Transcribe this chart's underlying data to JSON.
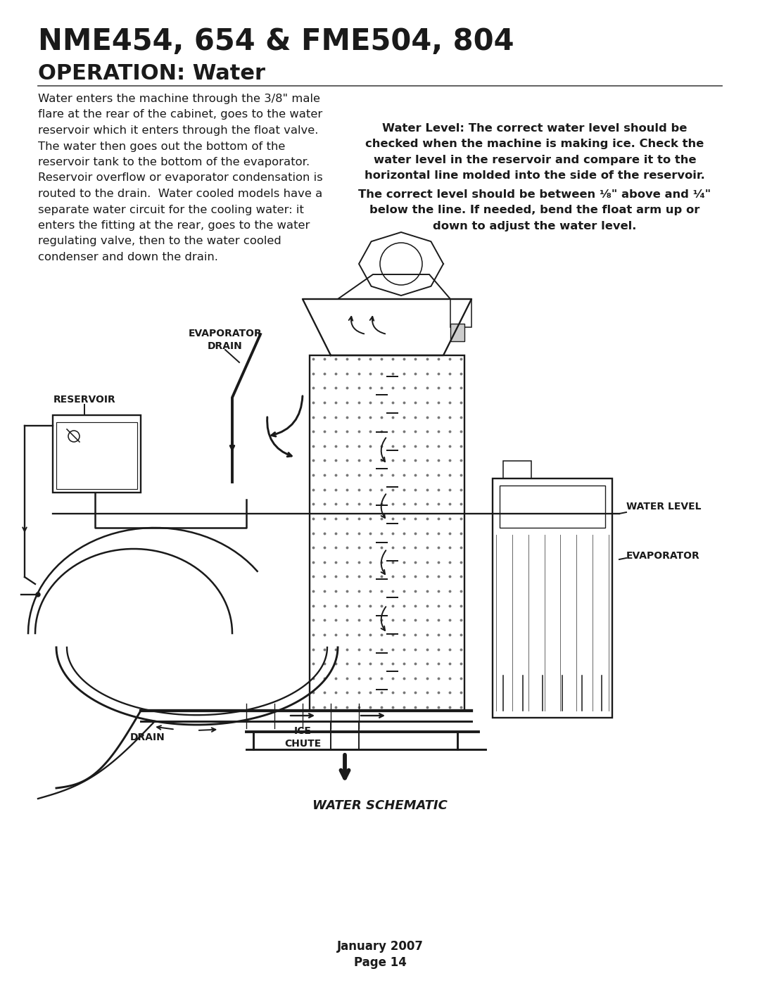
{
  "bg_color": "#ffffff",
  "title_bold": "NME454, 654 & FME504, 804",
  "subtitle": "OPERATION: Water",
  "left_para_lines": [
    "Water enters the machine through the 3/8\" male",
    "flare at the rear of the cabinet, goes to the water",
    "reservoir which it enters through the float valve.",
    "The water then goes out the bottom of the",
    "reservoir tank to the bottom of the evaporator.",
    "Reservoir overflow or evaporator condensation is",
    "routed to the drain.  Water cooled models have a",
    "separate water circuit for the cooling water: it",
    "enters the fitting at the rear, goes to the water",
    "regulating valve, then to the water cooled",
    "condenser and down the drain."
  ],
  "right_para1_lines": [
    "Water Level: The correct water level should be",
    "checked when the machine is making ice. Check the",
    "water level in the reservoir and compare it to the",
    "horizontal line molded into the side of the reservoir."
  ],
  "right_para2_line1": "The correct level should be between ¹⁄₈\" above and ¹⁄₄\"",
  "right_para2_lines": [
    "below the line. If needed, bend the float arm up or",
    "down to adjust the water level."
  ],
  "footer_line1": "January 2007",
  "footer_line2": "Page 14",
  "text_color": "#1a1a1a"
}
